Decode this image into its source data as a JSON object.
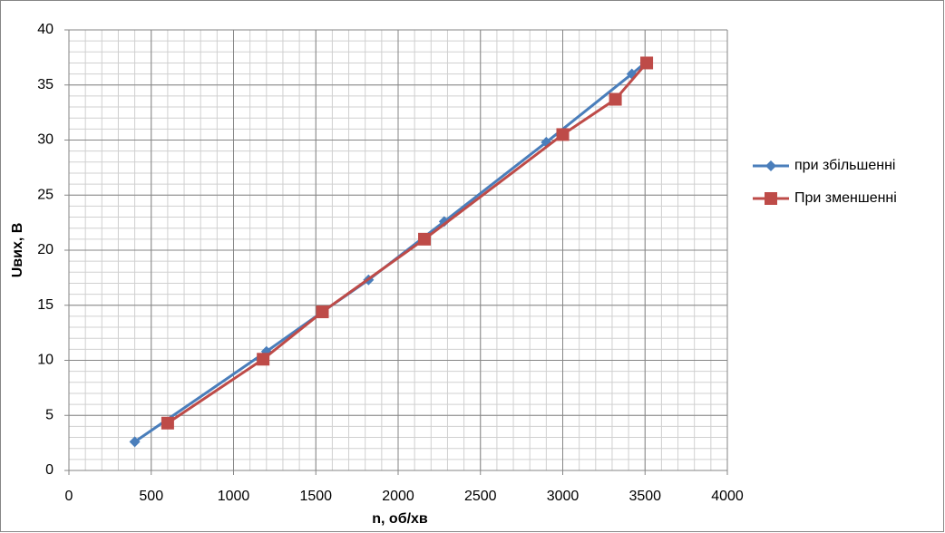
{
  "chart_data": {
    "type": "scatter",
    "xlabel": "n, об/хв",
    "ylabel": "Uвих, В",
    "xlim": [
      0,
      4000
    ],
    "xticks": [
      0,
      500,
      1000,
      1500,
      2000,
      2500,
      3000,
      3500,
      4000
    ],
    "ylim": [
      0,
      40
    ],
    "yticks": [
      0,
      5,
      10,
      15,
      20,
      25,
      30,
      35,
      40
    ],
    "grid": true,
    "minor_grid": {
      "x": 100,
      "y": 1
    },
    "legend": "right",
    "series": [
      {
        "name": "при збільшенні",
        "color": "#4a7ebb",
        "marker": "diamond",
        "x": [
          400,
          1200,
          1540,
          1820,
          2280,
          2900,
          3420,
          3500
        ],
        "values": [
          2.6,
          10.8,
          14.4,
          17.3,
          22.6,
          29.8,
          36,
          37
        ]
      },
      {
        "name": "При зменшенні",
        "color": "#be4b48",
        "marker": "square",
        "x": [
          600,
          1180,
          1540,
          2160,
          3000,
          3320,
          3510
        ],
        "values": [
          4.3,
          10.1,
          14.4,
          21,
          30.5,
          33.7,
          37
        ]
      }
    ]
  }
}
